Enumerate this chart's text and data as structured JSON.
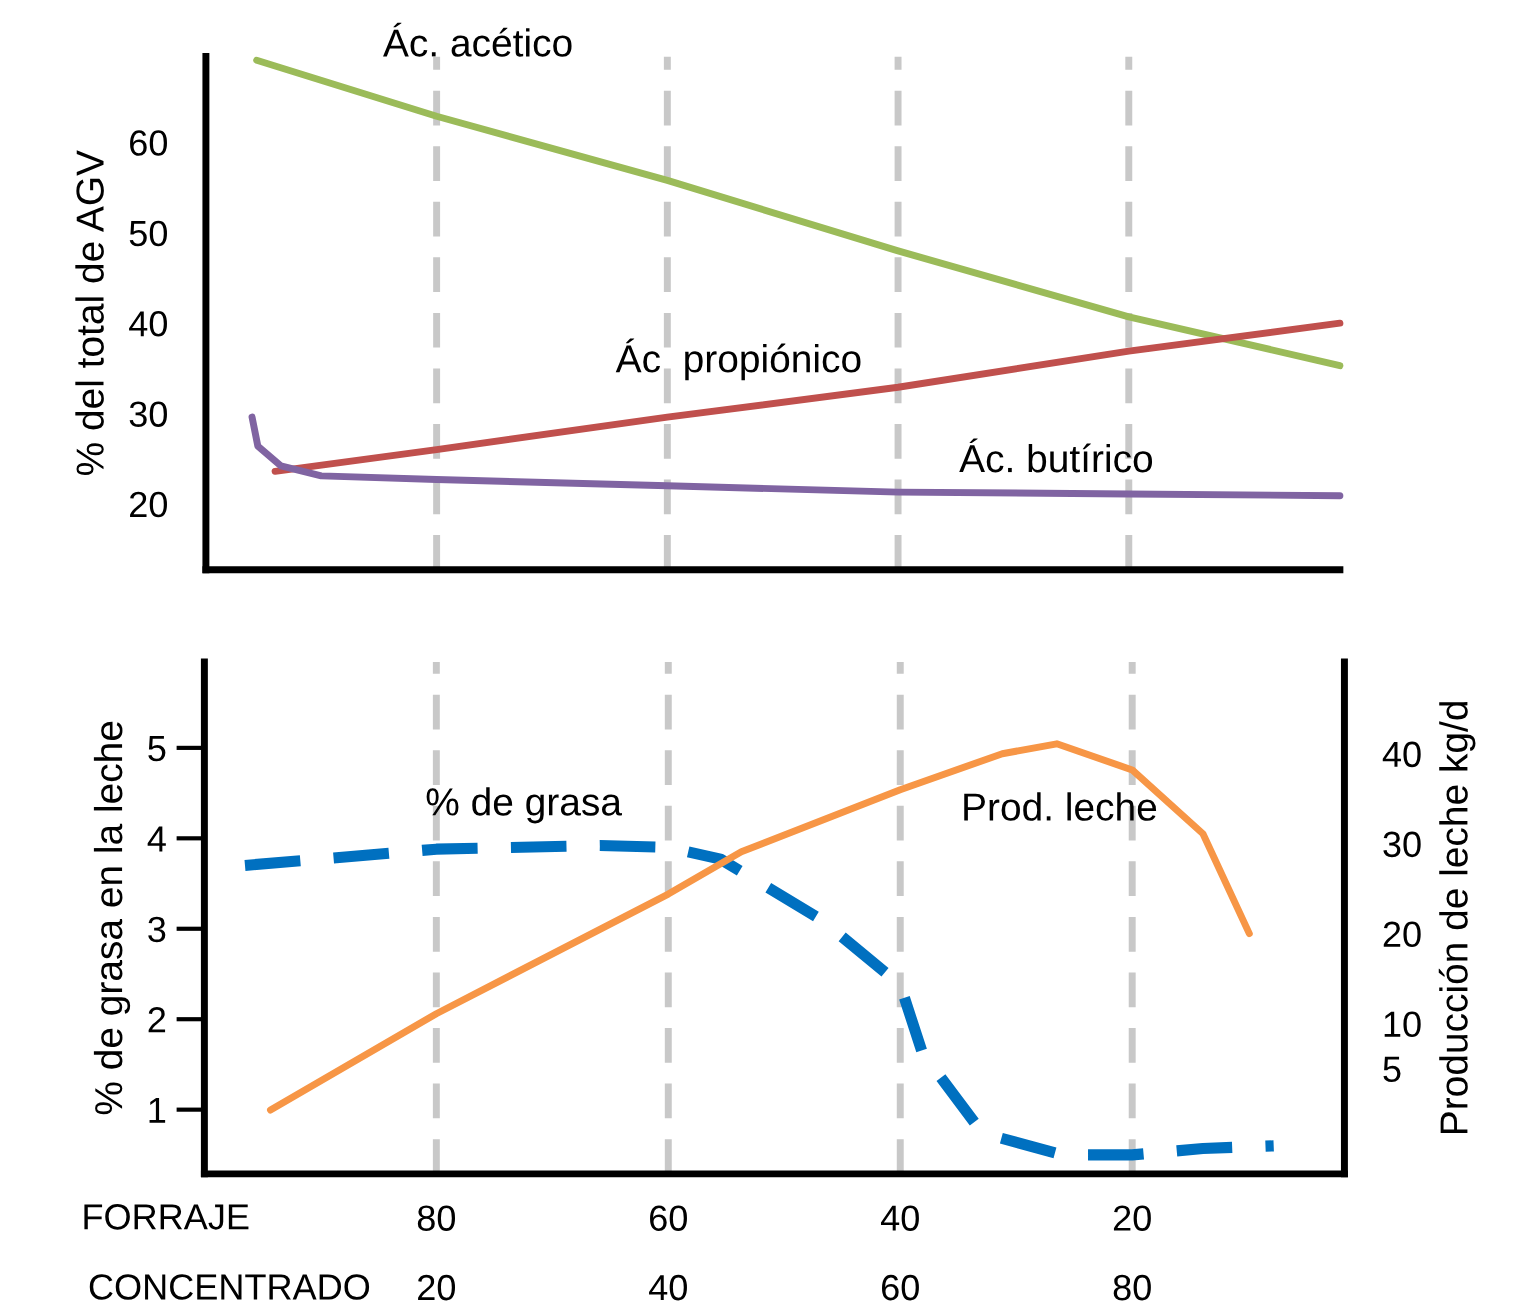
{
  "chart_data": [
    {
      "type": "line",
      "ylabel": "% del total de AGV",
      "xlim": [
        100,
        1.7
      ],
      "xticks": [
        80,
        60,
        40,
        20
      ],
      "ylim": [
        12.7,
        69.5
      ],
      "yticks": [
        60,
        50,
        40,
        30,
        20
      ],
      "tick_labels": "y",
      "ref_lines": [
        {
          "axis": "x",
          "value": 80,
          "color": "#c8c8c8",
          "line_style": "dashed"
        },
        {
          "axis": "x",
          "value": 60,
          "color": "#c8c8c8",
          "line_style": "dashed"
        },
        {
          "axis": "x",
          "value": 40,
          "color": "#c8c8c8",
          "line_style": "dashed"
        },
        {
          "axis": "x",
          "value": 20,
          "color": "#c8c8c8",
          "line_style": "dashed"
        }
      ],
      "series": [
        {
          "name": "Ác. acético",
          "color": "#9bbb59",
          "x": [
            95.6,
            80,
            60,
            40,
            20,
            1.7
          ],
          "values": [
            69.1,
            62.9,
            55.8,
            48,
            40.7,
            35.3
          ]
        },
        {
          "name": "Ác  propiónico",
          "color": "#c0504d",
          "x": [
            94,
            80,
            60,
            40,
            20,
            1.7
          ],
          "values": [
            23.6,
            26,
            29.6,
            32.9,
            36.9,
            40
          ]
        },
        {
          "name": "Ác. butírico",
          "color": "#8064a2",
          "x": [
            96,
            95.5,
            93.5,
            90,
            80,
            60,
            40,
            20,
            1.7
          ],
          "values": [
            29.6,
            26.4,
            24.2,
            23.1,
            22.7,
            22,
            21.3,
            21.1,
            20.9
          ]
        }
      ]
    },
    {
      "type": "line",
      "ylabel": "% de grasa en la leche",
      "y2label": "Producción de leche kg/d",
      "xlabel": "FORRAJE",
      "x2label": "CONCENTRADO",
      "xlim": [
        100,
        1.7
      ],
      "xticks": [
        80,
        60,
        40,
        20
      ],
      "x2lim": [
        0,
        98.3
      ],
      "x2ticks": [
        20,
        40,
        60,
        80
      ],
      "ylim": [
        0.29,
        5.95
      ],
      "yticks": [
        5,
        4,
        3,
        2,
        1
      ],
      "y2lim": [
        -6.7,
        50.2
      ],
      "y2ticks": [
        40,
        30,
        20,
        10,
        5
      ],
      "ref_lines": [
        {
          "axis": "x",
          "value": 80,
          "color": "#c8c8c8",
          "line_style": "dashed"
        },
        {
          "axis": "x",
          "value": 60,
          "color": "#c8c8c8",
          "line_style": "dashed"
        },
        {
          "axis": "x",
          "value": 40,
          "color": "#c8c8c8",
          "line_style": "dashed"
        },
        {
          "axis": "x",
          "value": 20,
          "color": "#c8c8c8",
          "line_style": "dashed"
        }
      ],
      "series": [
        {
          "name": "% de grasa",
          "color": "#0070c0",
          "line_style": "dashed",
          "x": [
            96.5,
            80,
            65.9,
            60,
            55.5,
            46.8,
            40,
            38.1,
            32.9,
            26,
            20,
            13.9,
            7.8
          ],
          "values": [
            3.7,
            3.88,
            3.92,
            3.9,
            3.77,
            3.1,
            2.38,
            1.63,
            0.74,
            0.5,
            0.5,
            0.57,
            0.6
          ]
        },
        {
          "name": "Prod. leche",
          "color": "#f79646",
          "axis": "y2",
          "x": [
            94.3,
            80,
            60,
            53.7,
            40,
            31.2,
            26.5,
            20,
            13.9,
            9.9
          ],
          "values": [
            0.4,
            11.1,
            24.4,
            29.1,
            36,
            40,
            41.1,
            38.2,
            31.1,
            20
          ]
        }
      ]
    }
  ]
}
